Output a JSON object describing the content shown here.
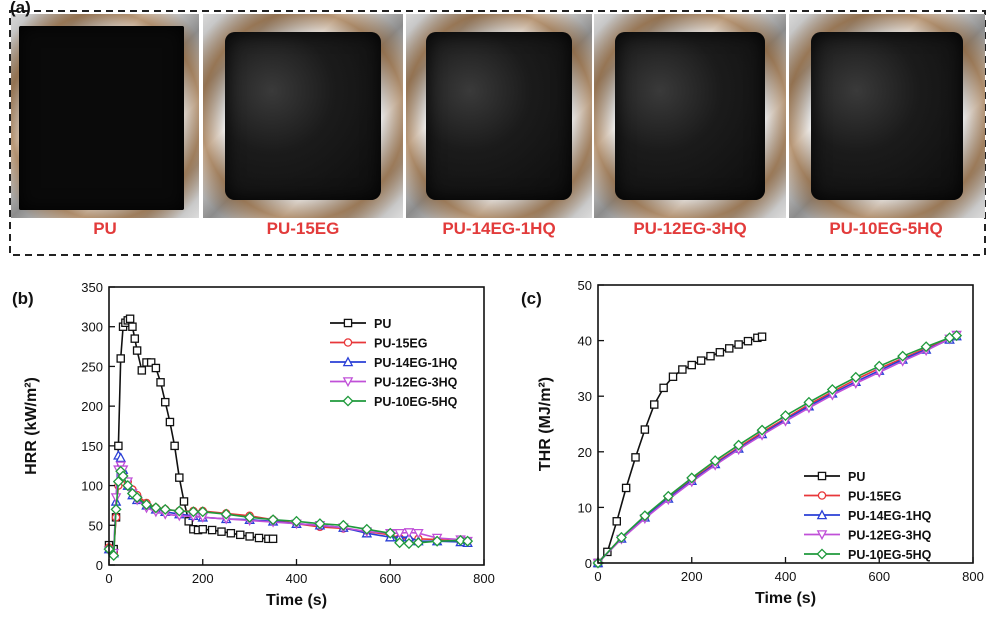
{
  "panel_a": {
    "tag": "(a)",
    "samples": [
      "PU",
      "PU-15EG",
      "PU-14EG-1HQ",
      "PU-12EG-3HQ",
      "PU-10EG-5HQ"
    ]
  },
  "colors": {
    "PU": "#111111",
    "PU-15EG": "#e8373a",
    "PU-14EG-1HQ": "#2a3fd6",
    "PU-12EG-3HQ": "#c050d8",
    "PU-10EG-5HQ": "#1f9a3c",
    "label_red": "#e23b3b"
  },
  "chart_data": [
    {
      "panel": "(b)",
      "type": "line",
      "xlabel": "Time (s)",
      "ylabel": "HRR (kW/m²)",
      "xlim": [
        0,
        800
      ],
      "ylim": [
        0,
        350
      ],
      "xticks": [
        0,
        200,
        400,
        600,
        800
      ],
      "yticks": [
        0,
        50,
        100,
        150,
        200,
        250,
        300,
        350
      ],
      "legend_position": "top-right",
      "series": [
        {
          "name": "PU",
          "marker": "square",
          "x": [
            0,
            10,
            15,
            20,
            25,
            30,
            35,
            40,
            45,
            50,
            55,
            60,
            70,
            80,
            90,
            100,
            110,
            120,
            130,
            140,
            150,
            160,
            170,
            180,
            190,
            200,
            220,
            240,
            260,
            280,
            300,
            320,
            340,
            350
          ],
          "y": [
            25,
            20,
            60,
            150,
            260,
            300,
            305,
            308,
            310,
            300,
            285,
            270,
            245,
            255,
            255,
            248,
            230,
            205,
            180,
            150,
            110,
            80,
            55,
            45,
            44,
            45,
            44,
            42,
            40,
            38,
            36,
            34,
            33,
            33
          ]
        },
        {
          "name": "PU-15EG",
          "marker": "circle",
          "x": [
            0,
            10,
            15,
            20,
            25,
            30,
            40,
            50,
            60,
            80,
            100,
            120,
            150,
            180,
            200,
            250,
            300,
            350,
            400,
            450,
            500,
            550,
            600,
            620,
            640,
            660,
            700,
            750,
            765
          ],
          "y": [
            22,
            15,
            60,
            100,
            118,
            115,
            105,
            95,
            88,
            78,
            72,
            70,
            68,
            68,
            68,
            65,
            62,
            57,
            52,
            48,
            46,
            42,
            38,
            34,
            32,
            33,
            32,
            30,
            30
          ]
        },
        {
          "name": "PU-14EG-1HQ",
          "marker": "triangle-up",
          "x": [
            0,
            10,
            15,
            20,
            25,
            30,
            40,
            50,
            60,
            80,
            100,
            120,
            150,
            180,
            200,
            250,
            300,
            350,
            400,
            450,
            500,
            550,
            600,
            620,
            640,
            660,
            700,
            750,
            765
          ],
          "y": [
            20,
            15,
            80,
            138,
            135,
            120,
            100,
            88,
            82,
            75,
            70,
            67,
            64,
            62,
            60,
            58,
            57,
            55,
            52,
            50,
            47,
            40,
            35,
            35,
            35,
            30,
            30,
            29,
            28
          ]
        },
        {
          "name": "PU-12EG-3HQ",
          "marker": "triangle-down",
          "x": [
            0,
            10,
            15,
            20,
            25,
            30,
            40,
            50,
            60,
            80,
            100,
            120,
            150,
            180,
            200,
            250,
            300,
            350,
            400,
            450,
            500,
            550,
            600,
            620,
            640,
            660,
            700,
            750,
            765
          ],
          "y": [
            18,
            15,
            85,
            120,
            125,
            120,
            105,
            90,
            82,
            72,
            67,
            64,
            62,
            61,
            60,
            58,
            56,
            54,
            52,
            50,
            47,
            42,
            40,
            40,
            41,
            40,
            34,
            32,
            30
          ]
        },
        {
          "name": "PU-10EG-5HQ",
          "marker": "diamond",
          "x": [
            0,
            10,
            15,
            20,
            25,
            30,
            40,
            50,
            60,
            80,
            100,
            120,
            150,
            180,
            200,
            250,
            300,
            350,
            400,
            450,
            500,
            550,
            600,
            620,
            640,
            660,
            700,
            750,
            765
          ],
          "y": [
            20,
            12,
            70,
            105,
            118,
            112,
            100,
            90,
            85,
            76,
            72,
            70,
            68,
            67,
            67,
            64,
            60,
            57,
            55,
            52,
            50,
            45,
            40,
            28,
            27,
            28,
            30,
            31,
            30
          ]
        }
      ]
    },
    {
      "panel": "(c)",
      "type": "line",
      "xlabel": "Time (s)",
      "ylabel": "THR (MJ/m²)",
      "xlim": [
        0,
        800
      ],
      "ylim": [
        0,
        50
      ],
      "xticks": [
        0,
        200,
        400,
        600,
        800
      ],
      "yticks": [
        0,
        10,
        20,
        30,
        40,
        50
      ],
      "legend_position": "bottom-right",
      "series": [
        {
          "name": "PU",
          "marker": "square",
          "x": [
            0,
            20,
            40,
            60,
            80,
            100,
            120,
            140,
            160,
            180,
            200,
            220,
            240,
            260,
            280,
            300,
            320,
            340,
            350
          ],
          "y": [
            0,
            2,
            7.5,
            13.5,
            19,
            24,
            28.5,
            31.5,
            33.5,
            34.8,
            35.6,
            36.4,
            37.2,
            37.9,
            38.6,
            39.3,
            39.9,
            40.5,
            40.7
          ]
        },
        {
          "name": "PU-15EG",
          "marker": "circle",
          "x": [
            0,
            50,
            100,
            150,
            200,
            250,
            300,
            350,
            400,
            450,
            500,
            550,
            600,
            650,
            700,
            750,
            765
          ],
          "y": [
            0,
            4.5,
            8.3,
            11.7,
            15,
            18,
            20.8,
            23.5,
            26,
            28.5,
            30.8,
            33,
            35,
            36.8,
            38.6,
            40.3,
            40.8
          ]
        },
        {
          "name": "PU-14EG-1HQ",
          "marker": "triangle-up",
          "x": [
            0,
            50,
            100,
            150,
            200,
            250,
            300,
            350,
            400,
            450,
            500,
            550,
            600,
            650,
            700,
            750,
            765
          ],
          "y": [
            0,
            4.4,
            8.2,
            11.6,
            14.8,
            17.8,
            20.6,
            23.2,
            25.8,
            28.2,
            30.5,
            32.6,
            34.6,
            36.6,
            38.4,
            40.2,
            40.8
          ]
        },
        {
          "name": "PU-12EG-3HQ",
          "marker": "triangle-down",
          "x": [
            0,
            50,
            100,
            150,
            200,
            250,
            300,
            350,
            400,
            450,
            500,
            550,
            600,
            650,
            700,
            750,
            765
          ],
          "y": [
            0,
            4.3,
            8,
            11.4,
            14.6,
            17.6,
            20.4,
            23,
            25.5,
            27.9,
            30.2,
            32.3,
            34.3,
            36.3,
            38.2,
            40.3,
            41
          ]
        },
        {
          "name": "PU-10EG-5HQ",
          "marker": "diamond",
          "x": [
            0,
            50,
            100,
            150,
            200,
            250,
            300,
            350,
            400,
            450,
            500,
            550,
            600,
            650,
            700,
            750,
            765
          ],
          "y": [
            0,
            4.6,
            8.5,
            12,
            15.3,
            18.4,
            21.2,
            23.9,
            26.5,
            28.9,
            31.2,
            33.4,
            35.4,
            37.2,
            38.9,
            40.5,
            40.9
          ]
        }
      ]
    }
  ]
}
